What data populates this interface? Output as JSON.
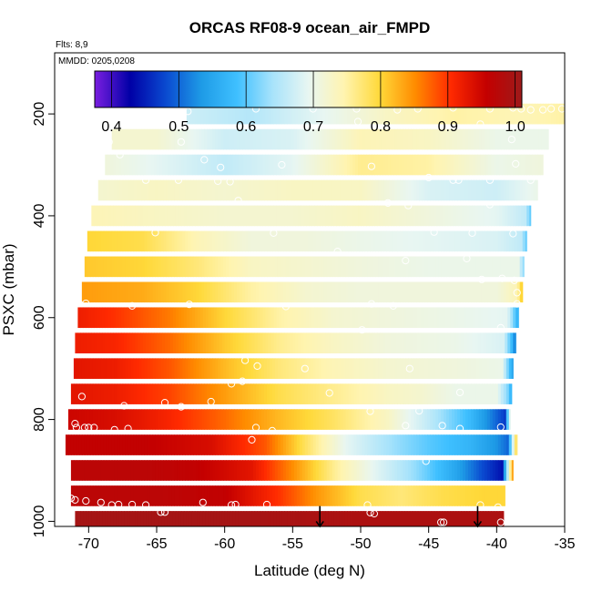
{
  "chart_data": {
    "type": "heatmap",
    "title": "ORCAS RF08-9 ocean_air_FMPD",
    "flights_note": "Flts: 8,9",
    "date_note": "MMDD: 0205,0208",
    "xlabel": "Latitude (deg N)",
    "ylabel": "PSXC (mbar)",
    "xlim": [
      -72.5,
      -35
    ],
    "ylim": [
      1010,
      80
    ],
    "x_ticks": [
      -70,
      -65,
      -60,
      -55,
      -50,
      -45,
      -40,
      -35
    ],
    "x_tick_labels": [
      "-70",
      "-65",
      "-60",
      "-55",
      "-50",
      "-45",
      "-40",
      "-35"
    ],
    "y_ticks": [
      200,
      400,
      600,
      800,
      1000
    ],
    "y_tick_labels": [
      "200",
      "400",
      "600",
      "800",
      "1000"
    ],
    "colorbar": {
      "range": [
        0.375,
        1.01
      ],
      "ticks": [
        0.4,
        0.5,
        0.6,
        0.7,
        0.8,
        0.9,
        1.0
      ],
      "tick_labels": [
        "0.4",
        "0.5",
        "0.6",
        "0.7",
        "0.8",
        "0.9",
        "1.0"
      ],
      "colors": [
        "#7a1ee0",
        "#0000a6",
        "#0a4ad0",
        "#1e9be6",
        "#3fc0ff",
        "#a8e3fb",
        "#e8f6f2",
        "#fff4b0",
        "#ffd93a",
        "#ff8c00",
        "#ff2a00",
        "#c40000",
        "#9e1a1a"
      ]
    },
    "bands": [
      {
        "p": 200,
        "lat_min": -62.8,
        "lat_max": -35.0,
        "stops": [
          [
            -62.8,
            0.67
          ],
          [
            -58,
            0.65
          ],
          [
            -53,
            0.69
          ],
          [
            -48,
            0.73
          ],
          [
            -43,
            0.75
          ],
          [
            -38,
            0.74
          ],
          [
            -35.0,
            0.75
          ]
        ]
      },
      {
        "p": 250,
        "lat_min": -68.3,
        "lat_max": -36.2,
        "stops": [
          [
            -68.3,
            0.72
          ],
          [
            -65,
            0.72
          ],
          [
            -60,
            0.67
          ],
          [
            -55,
            0.68
          ],
          [
            -50,
            0.74
          ],
          [
            -45,
            0.73
          ],
          [
            -40,
            0.7
          ],
          [
            -36.2,
            0.7
          ]
        ]
      },
      {
        "p": 300,
        "lat_min": -68.8,
        "lat_max": -36.6,
        "stops": [
          [
            -68.8,
            0.71
          ],
          [
            -65,
            0.69
          ],
          [
            -60,
            0.66
          ],
          [
            -55,
            0.69
          ],
          [
            -50,
            0.76
          ],
          [
            -45,
            0.75
          ],
          [
            -40,
            0.7
          ],
          [
            -36.6,
            0.71
          ]
        ]
      },
      {
        "p": 350,
        "lat_min": -69.3,
        "lat_max": -37.0,
        "stops": [
          [
            -69.3,
            0.72
          ],
          [
            -65,
            0.73
          ],
          [
            -60,
            0.72
          ],
          [
            -55,
            0.73
          ],
          [
            -50,
            0.73
          ],
          [
            -45,
            0.68
          ],
          [
            -40,
            0.67
          ],
          [
            -37.0,
            0.7
          ]
        ]
      },
      {
        "p": 400,
        "lat_min": -69.8,
        "lat_max": -37.5,
        "stops": [
          [
            -69.8,
            0.74
          ],
          [
            -65,
            0.73
          ],
          [
            -60,
            0.72
          ],
          [
            -55,
            0.72
          ],
          [
            -50,
            0.73
          ],
          [
            -45,
            0.71
          ],
          [
            -40,
            0.69
          ],
          [
            -37.9,
            0.66
          ],
          [
            -37.5,
            0.6
          ]
        ]
      },
      {
        "p": 450,
        "lat_min": -70.1,
        "lat_max": -37.8,
        "stops": [
          [
            -70.1,
            0.8
          ],
          [
            -66,
            0.79
          ],
          [
            -62,
            0.74
          ],
          [
            -58,
            0.71
          ],
          [
            -54,
            0.71
          ],
          [
            -50,
            0.7
          ],
          [
            -45,
            0.69
          ],
          [
            -40,
            0.68
          ],
          [
            -38.2,
            0.66
          ],
          [
            -37.8,
            0.6
          ]
        ]
      },
      {
        "p": 500,
        "lat_min": -70.3,
        "lat_max": -38.0,
        "stops": [
          [
            -70.3,
            0.81
          ],
          [
            -66,
            0.8
          ],
          [
            -62,
            0.77
          ],
          [
            -58,
            0.73
          ],
          [
            -54,
            0.72
          ],
          [
            -50,
            0.71
          ],
          [
            -45,
            0.7
          ],
          [
            -40,
            0.7
          ],
          [
            -38.4,
            0.7
          ],
          [
            -38.0,
            0.62
          ]
        ]
      },
      {
        "p": 550,
        "lat_min": -70.5,
        "lat_max": -38.1,
        "stops": [
          [
            -70.5,
            0.84
          ],
          [
            -66,
            0.83
          ],
          [
            -62,
            0.8
          ],
          [
            -58,
            0.75
          ],
          [
            -54,
            0.72
          ],
          [
            -50,
            0.71
          ],
          [
            -45,
            0.71
          ],
          [
            -40,
            0.71
          ],
          [
            -38.5,
            0.74
          ],
          [
            -38.1,
            0.82
          ]
        ]
      },
      {
        "p": 600,
        "lat_min": -70.8,
        "lat_max": -38.4,
        "stops": [
          [
            -70.8,
            0.92
          ],
          [
            -68,
            0.9
          ],
          [
            -64,
            0.86
          ],
          [
            -60,
            0.8
          ],
          [
            -56,
            0.75
          ],
          [
            -52,
            0.72
          ],
          [
            -48,
            0.71
          ],
          [
            -43,
            0.7
          ],
          [
            -39.2,
            0.69
          ],
          [
            -38.8,
            0.62
          ],
          [
            -38.4,
            0.56
          ]
        ]
      },
      {
        "p": 650,
        "lat_min": -71.0,
        "lat_max": -38.6,
        "stops": [
          [
            -71.0,
            0.92
          ],
          [
            -68,
            0.91
          ],
          [
            -64,
            0.87
          ],
          [
            -60,
            0.81
          ],
          [
            -56,
            0.76
          ],
          [
            -52,
            0.73
          ],
          [
            -48,
            0.71
          ],
          [
            -43,
            0.7
          ],
          [
            -39.5,
            0.68
          ],
          [
            -38.9,
            0.58
          ],
          [
            -38.6,
            0.5
          ]
        ]
      },
      {
        "p": 700,
        "lat_min": -71.1,
        "lat_max": -38.8,
        "stops": [
          [
            -71.1,
            0.93
          ],
          [
            -68,
            0.92
          ],
          [
            -64,
            0.88
          ],
          [
            -60,
            0.82
          ],
          [
            -56,
            0.77
          ],
          [
            -52,
            0.74
          ],
          [
            -48,
            0.72
          ],
          [
            -43,
            0.71
          ],
          [
            -39.6,
            0.7
          ],
          [
            -39.1,
            0.6
          ],
          [
            -38.8,
            0.54
          ]
        ]
      },
      {
        "p": 750,
        "lat_min": -71.3,
        "lat_max": -38.9,
        "stops": [
          [
            -71.3,
            0.93
          ],
          [
            -68,
            0.92
          ],
          [
            -64,
            0.89
          ],
          [
            -60,
            0.84
          ],
          [
            -56,
            0.79
          ],
          [
            -52,
            0.76
          ],
          [
            -48,
            0.73
          ],
          [
            -45.5,
            0.72
          ],
          [
            -43,
            0.7
          ],
          [
            -40,
            0.7
          ],
          [
            -39.2,
            0.62
          ],
          [
            -38.9,
            0.56
          ]
        ]
      },
      {
        "p": 800,
        "lat_min": -71.5,
        "lat_max": -39.0,
        "stops": [
          [
            -71.5,
            0.95
          ],
          [
            -68,
            0.94
          ],
          [
            -64,
            0.91
          ],
          [
            -60,
            0.87
          ],
          [
            -56,
            0.82
          ],
          [
            -52,
            0.78
          ],
          [
            -48,
            0.73
          ],
          [
            -45,
            0.66
          ],
          [
            -42,
            0.58
          ],
          [
            -40.5,
            0.52
          ],
          [
            -39.4,
            0.47
          ],
          [
            -39.0,
            0.72
          ]
        ]
      },
      {
        "p": 850,
        "lat_min": -71.7,
        "lat_max": -38.5,
        "stops": [
          [
            -71.7,
            0.96
          ],
          [
            -66,
            0.96
          ],
          [
            -61,
            0.94
          ],
          [
            -57,
            0.88
          ],
          [
            -54,
            0.78
          ],
          [
            -51,
            0.69
          ],
          [
            -48,
            0.64
          ],
          [
            -45,
            0.6
          ],
          [
            -42,
            0.57
          ],
          [
            -40,
            0.53
          ],
          [
            -39.2,
            0.5
          ],
          [
            -38.5,
            0.82
          ]
        ]
      },
      {
        "p": 900,
        "lat_min": -71.3,
        "lat_max": -38.8,
        "stops": [
          [
            -71.3,
            0.97
          ],
          [
            -66,
            0.97
          ],
          [
            -62,
            0.96
          ],
          [
            -58,
            0.93
          ],
          [
            -55,
            0.85
          ],
          [
            -52,
            0.76
          ],
          [
            -49,
            0.69
          ],
          [
            -46,
            0.63
          ],
          [
            -43,
            0.55
          ],
          [
            -41,
            0.48
          ],
          [
            -39.6,
            0.44
          ],
          [
            -38.8,
            0.86
          ]
        ]
      },
      {
        "p": 950,
        "lat_min": -71.3,
        "lat_max": -39.4,
        "stops": [
          [
            -71.3,
            0.97
          ],
          [
            -65,
            0.97
          ],
          [
            -60,
            0.96
          ],
          [
            -56,
            0.9
          ],
          [
            -53,
            0.84
          ],
          [
            -50,
            0.79
          ],
          [
            -47,
            0.77
          ],
          [
            -44,
            0.79
          ],
          [
            -41,
            0.8
          ],
          [
            -39.4,
            0.8
          ]
        ]
      },
      {
        "p": 1000,
        "lat_min": -71.0,
        "lat_max": -39.5,
        "stops": [
          [
            -71.0,
            1.0
          ],
          [
            -60,
            1.0
          ],
          [
            -50,
            0.99
          ],
          [
            -39.5,
            0.99
          ]
        ]
      }
    ],
    "points": [
      [
        -62.7,
        195
      ],
      [
        -57.7,
        190
      ],
      [
        -53.5,
        190
      ],
      [
        -50.3,
        190
      ],
      [
        -47.3,
        192
      ],
      [
        -45.8,
        190
      ],
      [
        -43.2,
        188
      ],
      [
        -40.5,
        190
      ],
      [
        -38.8,
        188
      ],
      [
        -38.2,
        190
      ],
      [
        -37.5,
        192
      ],
      [
        -36.6,
        192
      ],
      [
        -36.0,
        190
      ],
      [
        -35.2,
        190
      ],
      [
        -50.2,
        215
      ],
      [
        -41.2,
        220
      ],
      [
        -38.9,
        250
      ],
      [
        -68.5,
        255
      ],
      [
        -63.2,
        255
      ],
      [
        -67.7,
        280
      ],
      [
        -61.5,
        290
      ],
      [
        -60.3,
        305
      ],
      [
        -55.8,
        300
      ],
      [
        -49.2,
        303
      ],
      [
        -38.6,
        298
      ],
      [
        -65.8,
        330
      ],
      [
        -63.4,
        330
      ],
      [
        -60.5,
        332
      ],
      [
        -59.6,
        333
      ],
      [
        -45.0,
        325
      ],
      [
        -43.2,
        330
      ],
      [
        -42.8,
        330
      ],
      [
        -40.5,
        330
      ],
      [
        -37.5,
        330
      ],
      [
        -59.0,
        370
      ],
      [
        -48.0,
        375
      ],
      [
        -46.5,
        380
      ],
      [
        -40.5,
        378
      ],
      [
        -65.1,
        433
      ],
      [
        -56.4,
        434
      ],
      [
        -44.6,
        432
      ],
      [
        -41.8,
        434
      ],
      [
        -38.8,
        435
      ],
      [
        -51.7,
        470
      ],
      [
        -46.7,
        488
      ],
      [
        -42.2,
        484
      ],
      [
        -41.1,
        525
      ],
      [
        -39.6,
        523
      ],
      [
        -38.7,
        527
      ],
      [
        -38.5,
        551
      ],
      [
        -70.7,
        572
      ],
      [
        -70.2,
        572
      ],
      [
        -66.8,
        577
      ],
      [
        -62.6,
        574
      ],
      [
        -55.5,
        578
      ],
      [
        -49.2,
        573
      ],
      [
        -47.6,
        577
      ],
      [
        -38.5,
        573
      ],
      [
        -49.9,
        624
      ],
      [
        -39.7,
        620
      ],
      [
        -58.5,
        684
      ],
      [
        -57.6,
        695
      ],
      [
        -54.1,
        700
      ],
      [
        -46.4,
        700
      ],
      [
        -58.7,
        725
      ],
      [
        -59.5,
        730
      ],
      [
        -52.3,
        748
      ],
      [
        -42.7,
        747
      ],
      [
        -38.5,
        742
      ],
      [
        -70.5,
        755
      ],
      [
        -67.4,
        773
      ],
      [
        -63.2,
        775
      ],
      [
        -64.4,
        767
      ],
      [
        -61.0,
        765
      ],
      [
        -49.3,
        784
      ],
      [
        -45.7,
        783
      ],
      [
        -71.0,
        808
      ],
      [
        -70.9,
        816
      ],
      [
        -70.3,
        816
      ],
      [
        -70.0,
        816
      ],
      [
        -69.6,
        816
      ],
      [
        -68.1,
        820
      ],
      [
        -67.1,
        818
      ],
      [
        -57.7,
        816
      ],
      [
        -58.0,
        840
      ],
      [
        -56.5,
        822
      ],
      [
        -46.7,
        812
      ],
      [
        -44.0,
        812
      ],
      [
        -42.7,
        818
      ],
      [
        -39.7,
        815
      ],
      [
        -45.2,
        882
      ],
      [
        -71.3,
        955
      ],
      [
        -71.0,
        958
      ],
      [
        -70.2,
        960
      ],
      [
        -69.1,
        963
      ],
      [
        -68.3,
        968
      ],
      [
        -67.8,
        967
      ],
      [
        -66.8,
        967
      ],
      [
        -65.8,
        968
      ],
      [
        -64.7,
        982
      ],
      [
        -64.4,
        982
      ],
      [
        -61.6,
        963
      ],
      [
        -59.5,
        968
      ],
      [
        -59.2,
        967
      ],
      [
        -56.9,
        967
      ],
      [
        -49.5,
        968
      ],
      [
        -49.3,
        983
      ],
      [
        -49.0,
        985
      ],
      [
        -44.1,
        1002
      ],
      [
        -43.9,
        1002
      ],
      [
        -41.2,
        968
      ],
      [
        -39.9,
        972
      ],
      [
        -39.7,
        1002
      ]
    ],
    "arrows_lat": [
      -53.0,
      -41.4
    ]
  }
}
